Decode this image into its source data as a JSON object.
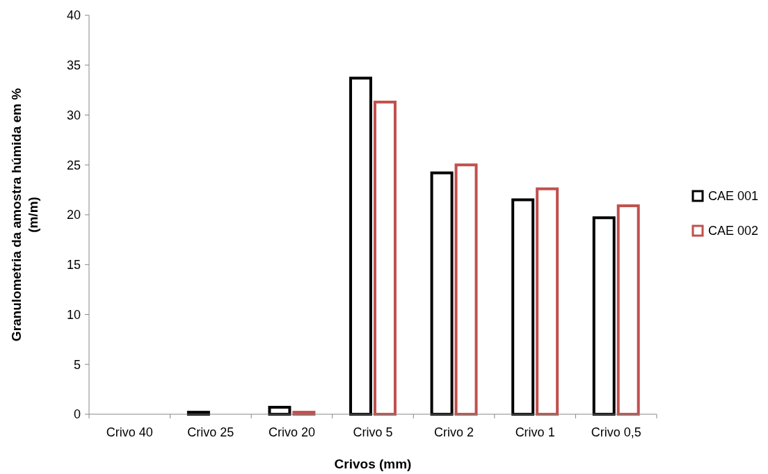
{
  "chart_data": {
    "type": "bar",
    "xlabel": "Crivos (mm)",
    "ylabel": "Granulometria da amostra húmida em % (m/m)",
    "categories": [
      "Crivo 40",
      "Crivo 25",
      "Crivo 20",
      "Crivo 5",
      "Crivo 2",
      "Crivo 1",
      "Crivo 0,5"
    ],
    "series": [
      {
        "name": "CAE 001",
        "color": "#000000",
        "values": [
          0,
          0.2,
          0.7,
          33.7,
          24.2,
          21.5,
          19.7
        ]
      },
      {
        "name": "CAE 002",
        "color": "#c0504d",
        "values": [
          0,
          0,
          0.2,
          31.3,
          25.0,
          22.6,
          20.9
        ]
      }
    ],
    "ylim": [
      0,
      40
    ],
    "yticks": [
      0,
      5,
      10,
      15,
      20,
      25,
      30,
      35,
      40
    ],
    "grid": false,
    "legend": "right"
  }
}
